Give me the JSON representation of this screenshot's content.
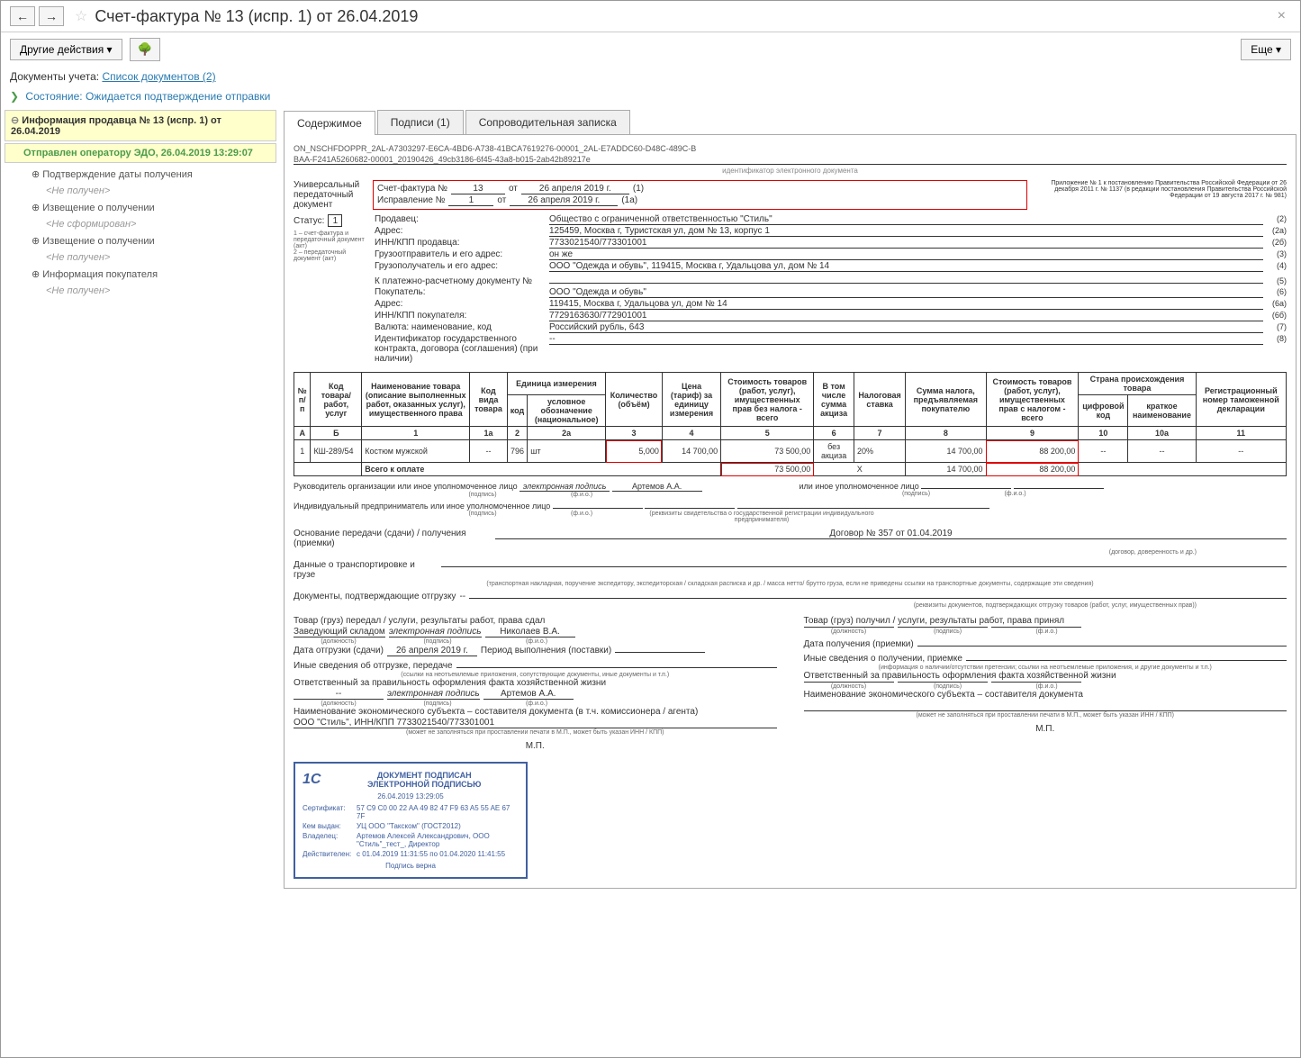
{
  "title": "Счет-фактура № 13 (испр. 1) от 26.04.2019",
  "toolbar": {
    "other_actions": "Другие действия",
    "more": "Еще"
  },
  "links": {
    "docs_label": "Документы учета:",
    "docs_link": "Список документов (2)"
  },
  "status_line": "Состояние: Ожидается подтверждение отправки",
  "sidebar": {
    "seller_info": "Информация продавца № 13 (испр. 1) от 26.04.2019",
    "sent": "Отправлен оператору ЭДО, 26.04.2019 13:29:07",
    "items": [
      {
        "label": "Подтверждение даты получения",
        "sub": "<Не получен>"
      },
      {
        "label": "Извещение о получении",
        "sub": "<Не сформирован>"
      },
      {
        "label": "Извещение о получении",
        "sub": "<Не получен>"
      },
      {
        "label": "Информация покупателя",
        "sub": "<Не получен>"
      }
    ]
  },
  "tabs": [
    "Содержимое",
    "Подписи (1)",
    "Сопроводительная записка"
  ],
  "doc": {
    "filename1": "ON_NSCHFDOPPR_2AL-A7303297-E6CA-4BD6-A738-41BCA7619276-00001_2AL-E7ADDC60-D48C-489C-B",
    "filename2": "BAA-F241A5260682-00001_20190426_49cb3186-6f45-43a8-b015-2ab42b89217e",
    "filename_caption": "идентификатор электронного документа",
    "upd_label": "Универсальный передаточный документ",
    "appendix": "Приложение № 1 к постановлению Правительства Российской Федерации от 26 декабря 2011 г. № 1137 (в редакции постановления Правительства Российской Федерации от 19 августа 2017 г. № 981)",
    "invoice_no_label": "Счет-фактура №",
    "invoice_no": "13",
    "from": "от",
    "invoice_date": "26 апреля 2019 г.",
    "line1": "(1)",
    "correction_label": "Исправление №",
    "correction_no": "1",
    "correction_date": "26 апреля 2019 г.",
    "line1a": "(1а)",
    "status_label": "Статус:",
    "status_val": "1",
    "status_note": "1 – счет-фактура и передаточный документ (акт)\n2 – передаточный документ (акт)",
    "fields": [
      {
        "label": "Продавец:",
        "val": "Общество с ограниченной ответственностью \"Стиль\"",
        "num": "(2)"
      },
      {
        "label": "Адрес:",
        "val": "125459, Москва г, Туристская ул, дом № 13, корпус 1",
        "num": "(2а)"
      },
      {
        "label": "ИНН/КПП продавца:",
        "val": "7733021540/773301001",
        "num": "(2б)"
      },
      {
        "label": "Грузоотправитель и его адрес:",
        "val": "он же",
        "num": "(3)"
      },
      {
        "label": "Грузополучатель и его адрес:",
        "val": "ООО \"Одежда и обувь\", 119415, Москва г, Удальцова ул, дом № 14",
        "num": "(4)"
      },
      {
        "label": "К платежно-расчетному документу №",
        "val": "",
        "num": "(5)"
      },
      {
        "label": "Покупатель:",
        "val": "ООО \"Одежда и обувь\"",
        "num": "(6)"
      },
      {
        "label": "Адрес:",
        "val": "119415, Москва г, Удальцова ул, дом № 14",
        "num": "(6а)"
      },
      {
        "label": "ИНН/КПП покупателя:",
        "val": "7729163630/772901001",
        "num": "(6б)"
      },
      {
        "label": "Валюта: наименование, код",
        "val": "Российский рубль, 643",
        "num": "(7)"
      },
      {
        "label": "Идентификатор государственного контракта, договора (соглашения) (при наличии)",
        "val": "--",
        "num": "(8)"
      }
    ],
    "table_headers": {
      "npp": "№ п/п",
      "code_goods": "Код товара/ работ, услуг",
      "name": "Наименование товара (описание выполненных работ, оказанных услуг), имущественного права",
      "type_code": "Код вида товара",
      "unit": "Единица измерения",
      "unit_code": "код",
      "unit_name": "условное обозначение (национальное)",
      "qty": "Количество (объём)",
      "price": "Цена (тариф) за единицу измерения",
      "cost_no_tax": "Стоимость товаров (работ, услуг), имущественных прав без налога - всего",
      "excise": "В том числе сумма акциза",
      "tax_rate": "Налоговая ставка",
      "tax_sum": "Сумма налога, предъявляемая покупателю",
      "cost_with_tax": "Стоимость товаров (работ, услуг), имущественных прав с налогом - всего",
      "country": "Страна происхождения товара",
      "country_code": "цифровой код",
      "country_name": "краткое наименование",
      "customs": "Регистрационный номер таможенной декларации"
    },
    "col_nums": [
      "А",
      "Б",
      "1",
      "1а",
      "2",
      "2а",
      "3",
      "4",
      "5",
      "6",
      "7",
      "8",
      "9",
      "10",
      "10а",
      "11"
    ],
    "rows": [
      {
        "n": "1",
        "code": "КШ-289/54",
        "name": "Костюм мужской",
        "type": "--",
        "unit_code": "796",
        "unit_name": "шт",
        "qty": "5,000",
        "price": "14 700,00",
        "cost_no_tax": "73 500,00",
        "excise": "без акциза",
        "rate": "20%",
        "tax_sum": "14 700,00",
        "cost_with_tax": "88 200,00",
        "c_code": "--",
        "c_name": "--",
        "customs": "--"
      }
    ],
    "total_label": "Всего к оплате",
    "totals": {
      "cost_no_tax": "73 500,00",
      "x": "Х",
      "tax_sum": "14 700,00",
      "cost_with_tax": "88 200,00"
    },
    "sig": {
      "head": "Руководитель организации или иное уполномоченное лицо",
      "e_sig": "электронная подпись",
      "sig_caption": "(подпись)",
      "artemov": "Артемов А.А.",
      "fio_caption": "(ф.и.о.)",
      "other": "или иное уполномоченное лицо",
      "ip": "Индивидуальный предприниматель или иное уполномоченное лицо",
      "ip_caption": "(реквизиты свидетельства о государственной регистрации индивидуального предпринимателя)"
    },
    "basis_label": "Основание передачи (сдачи) / получения (приемки)",
    "basis_val": "Договор № 357 от 01.04.2019",
    "basis_caption": "(договор, доверенность и др.)",
    "transport_label": "Данные о транспортировке и грузе",
    "transport_caption": "(транспортная накладная, поручение экспедитору, экспедиторская / складская расписка и др. / масса нетто/ брутто груза, если не приведены ссылки на транспортные документы, содержащие эти сведения)",
    "ship_docs_label": "Документы, подтверждающие отгрузку",
    "dash": "--",
    "ship_docs_caption": "(реквизиты документов, подтверждающих отгрузку товаров (работ, услуг, имущественных прав))",
    "left_col": {
      "transfer": "Товар (груз) передал / услуги, результаты работ, права сдал",
      "position": "Заведующий складом",
      "pos_caption": "(должность)",
      "nikolaev": "Николаев В.А.",
      "ship_date_label": "Дата отгрузки (сдачи)",
      "ship_date": "26 апреля 2019 г.",
      "period": "Период выполнения (поставки)",
      "other_info": "Иные сведения об отгрузке, передаче",
      "other_caption": "(ссылки на неотъемлемые приложения, сопутствующие документы, иные документы и т.п.)",
      "responsible": "Ответственный за правильность оформления факта хозяйственной жизни",
      "entity": "Наименование экономического субъекта – составителя документа (в т.ч. комиссионера / агента)",
      "entity_val": "ООО \"Стиль\", ИНН/КПП 7733021540/773301001",
      "entity_caption": "(может не заполняться при проставлении печати в М.П., может быть указан ИНН / КПП)",
      "mp": "М.П."
    },
    "right_col": {
      "receive": "Товар (груз) получил / услуги, результаты работ, права принял",
      "receive_date": "Дата получения (приемки)",
      "other_info": "Иные сведения о получении, приемке",
      "other_caption": "(информация о наличии/отсутствии претензии; ссылки на неотъемлемые приложения, и другие документы и т.п.)",
      "responsible": "Ответственный за правильность оформления факта хозяйственной жизни",
      "entity": "Наименование экономического субъекта – составителя документа",
      "entity_caption": "(может не заполняться при проставлении печати в М.П., может быть указан ИНН / КПП)",
      "mp": "М.П."
    }
  },
  "stamp": {
    "logo": "1С",
    "title1": "ДОКУМЕНТ ПОДПИСАН",
    "title2": "ЭЛЕКТРОННОЙ ПОДПИСЬЮ",
    "date": "26.04.2019 13:29:05",
    "cert_k": "Сертификат:",
    "cert_v": "57 C9 C0 00 22 AA 49 82 47 F9 63 A5 55 AE 67 7F",
    "issuer_k": "Кем выдан:",
    "issuer_v": "УЦ ООО \"Такском\" (ГОСТ2012)",
    "owner_k": "Владелец:",
    "owner_v": "Артемов Алексей Александрович, ООО \"Стиль\"_тест_, Директор",
    "valid_k": "Действителен:",
    "valid_v": "с 01.04.2019 11:31:55 по 01.04.2020 11:41:55",
    "verified": "Подпись верна"
  }
}
